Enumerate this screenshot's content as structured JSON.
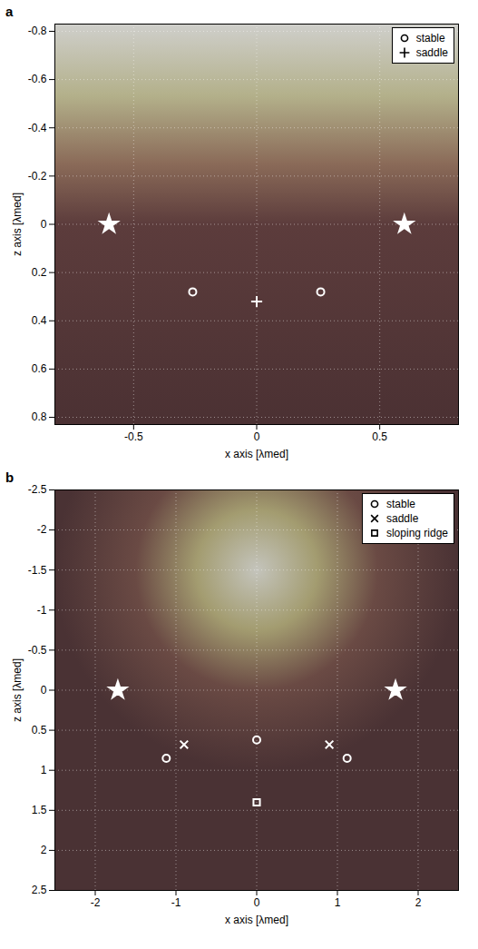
{
  "chart_data": [
    {
      "type": "scatter",
      "title": "a",
      "x_label": "x axis [λmed]",
      "y_label": "z axis [λmed]",
      "xlim": [
        -0.82,
        0.82
      ],
      "xticks": [
        -0.5,
        0,
        0.5
      ],
      "ylim": [
        -0.83,
        0.83
      ],
      "yticks": [
        -0.8,
        -0.6,
        -0.4,
        -0.2,
        0,
        0.2,
        0.4,
        0.6,
        0.8
      ],
      "grid": true,
      "legend": "top-right",
      "series": [
        {
          "name": "stable",
          "marker": "circle",
          "x": [
            -0.26,
            0.26
          ],
          "y": [
            0.28,
            0.28
          ]
        },
        {
          "name": "saddle",
          "marker": "plus",
          "x": [
            0
          ],
          "y": [
            0.32
          ]
        },
        {
          "marker": "star",
          "x": [
            -0.6,
            0.6
          ],
          "y": [
            0,
            0
          ]
        }
      ]
    },
    {
      "type": "scatter",
      "title": "b",
      "x_label": "x axis [λmed]",
      "y_label": "z axis [λmed]",
      "xlim": [
        -2.5,
        2.5
      ],
      "xticks": [
        -2,
        -1,
        0,
        1,
        2
      ],
      "ylim": [
        -2.5,
        2.5
      ],
      "yticks": [
        -2.5,
        -2,
        -1.5,
        -1,
        -0.5,
        0,
        0.5,
        1,
        1.5,
        2,
        2.5
      ],
      "grid": true,
      "legend": "top-right",
      "series": [
        {
          "name": "stable",
          "marker": "circle",
          "x": [
            -1.12,
            0,
            1.12
          ],
          "y": [
            0.85,
            0.62,
            0.85
          ]
        },
        {
          "name": "saddle",
          "marker": "times",
          "x": [
            -0.9,
            0.9
          ],
          "y": [
            0.68,
            0.68
          ]
        },
        {
          "name": "sloping ridge",
          "marker": "square",
          "x": [
            0
          ],
          "y": [
            1.4
          ]
        },
        {
          "marker": "star",
          "x": [
            -1.72,
            1.72
          ],
          "y": [
            0,
            0
          ]
        }
      ]
    }
  ]
}
